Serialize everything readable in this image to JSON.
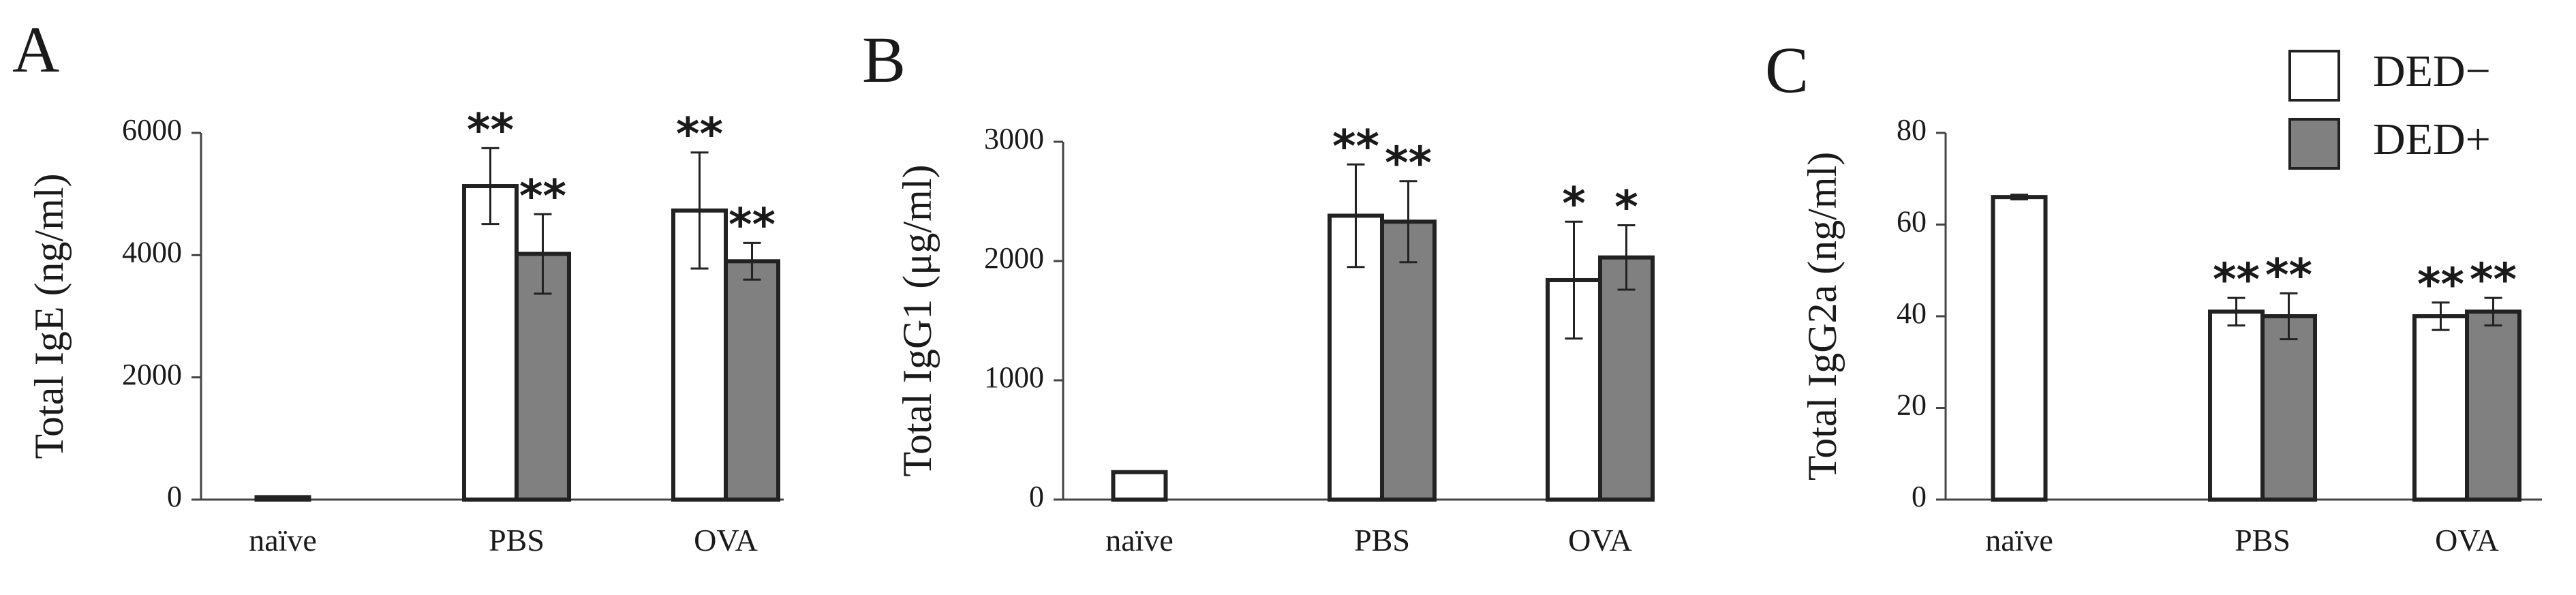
{
  "legend": [
    {
      "label": "DED−",
      "color": "#ffffff"
    },
    {
      "label": "DED+",
      "color": "#808080"
    }
  ],
  "chart_data": [
    {
      "panel": "A",
      "type": "bar",
      "ylabel": "Total IgE (ng/ml)",
      "ylim": [
        0,
        6000
      ],
      "yticks": [
        0,
        2000,
        4000,
        6000
      ],
      "ytick_labels": [
        "0",
        "2000",
        "4000",
        "6000"
      ],
      "categories": [
        "naïve",
        "PBS",
        "OVA"
      ],
      "series": [
        {
          "name": "DED−",
          "color": "#ffffff",
          "values": [
            40,
            5130,
            4730
          ],
          "errors": [
            0,
            620,
            950
          ],
          "sig": [
            "",
            "**",
            "**"
          ]
        },
        {
          "name": "DED+",
          "color": "#808080",
          "values": [
            null,
            4020,
            3900
          ],
          "errors": [
            null,
            650,
            300
          ],
          "sig": [
            "",
            "**",
            "**"
          ]
        }
      ]
    },
    {
      "panel": "B",
      "type": "bar",
      "ylabel": "Total IgG1 (μg/ml)",
      "ylim": [
        0,
        3000
      ],
      "yticks": [
        0,
        1000,
        2000,
        3000
      ],
      "ytick_labels": [
        "0",
        "1000",
        "2000",
        "3000"
      ],
      "categories": [
        "naïve",
        "PBS",
        "OVA"
      ],
      "series": [
        {
          "name": "DED−",
          "color": "#ffffff",
          "values": [
            230,
            2380,
            1840
          ],
          "errors": [
            0,
            430,
            490
          ],
          "sig": [
            "",
            "**",
            "*"
          ]
        },
        {
          "name": "DED+",
          "color": "#808080",
          "values": [
            null,
            2330,
            2030
          ],
          "errors": [
            null,
            340,
            270
          ],
          "sig": [
            "",
            "**",
            "*"
          ]
        }
      ]
    },
    {
      "panel": "C",
      "type": "bar",
      "ylabel": "Total IgG2a (ng/ml)",
      "ylim": [
        0,
        80
      ],
      "yticks": [
        0,
        20,
        40,
        60,
        80
      ],
      "ytick_labels": [
        "0",
        "20",
        "40",
        "60",
        "80"
      ],
      "categories": [
        "naïve",
        "PBS",
        "OVA"
      ],
      "series": [
        {
          "name": "DED−",
          "color": "#ffffff",
          "values": [
            66,
            41,
            40
          ],
          "errors": [
            0.5,
            3,
            3
          ],
          "sig": [
            "",
            "**",
            "**"
          ]
        },
        {
          "name": "DED+",
          "color": "#808080",
          "values": [
            null,
            40,
            41
          ],
          "errors": [
            null,
            5,
            3
          ],
          "sig": [
            "",
            "**",
            "**"
          ]
        }
      ]
    }
  ]
}
